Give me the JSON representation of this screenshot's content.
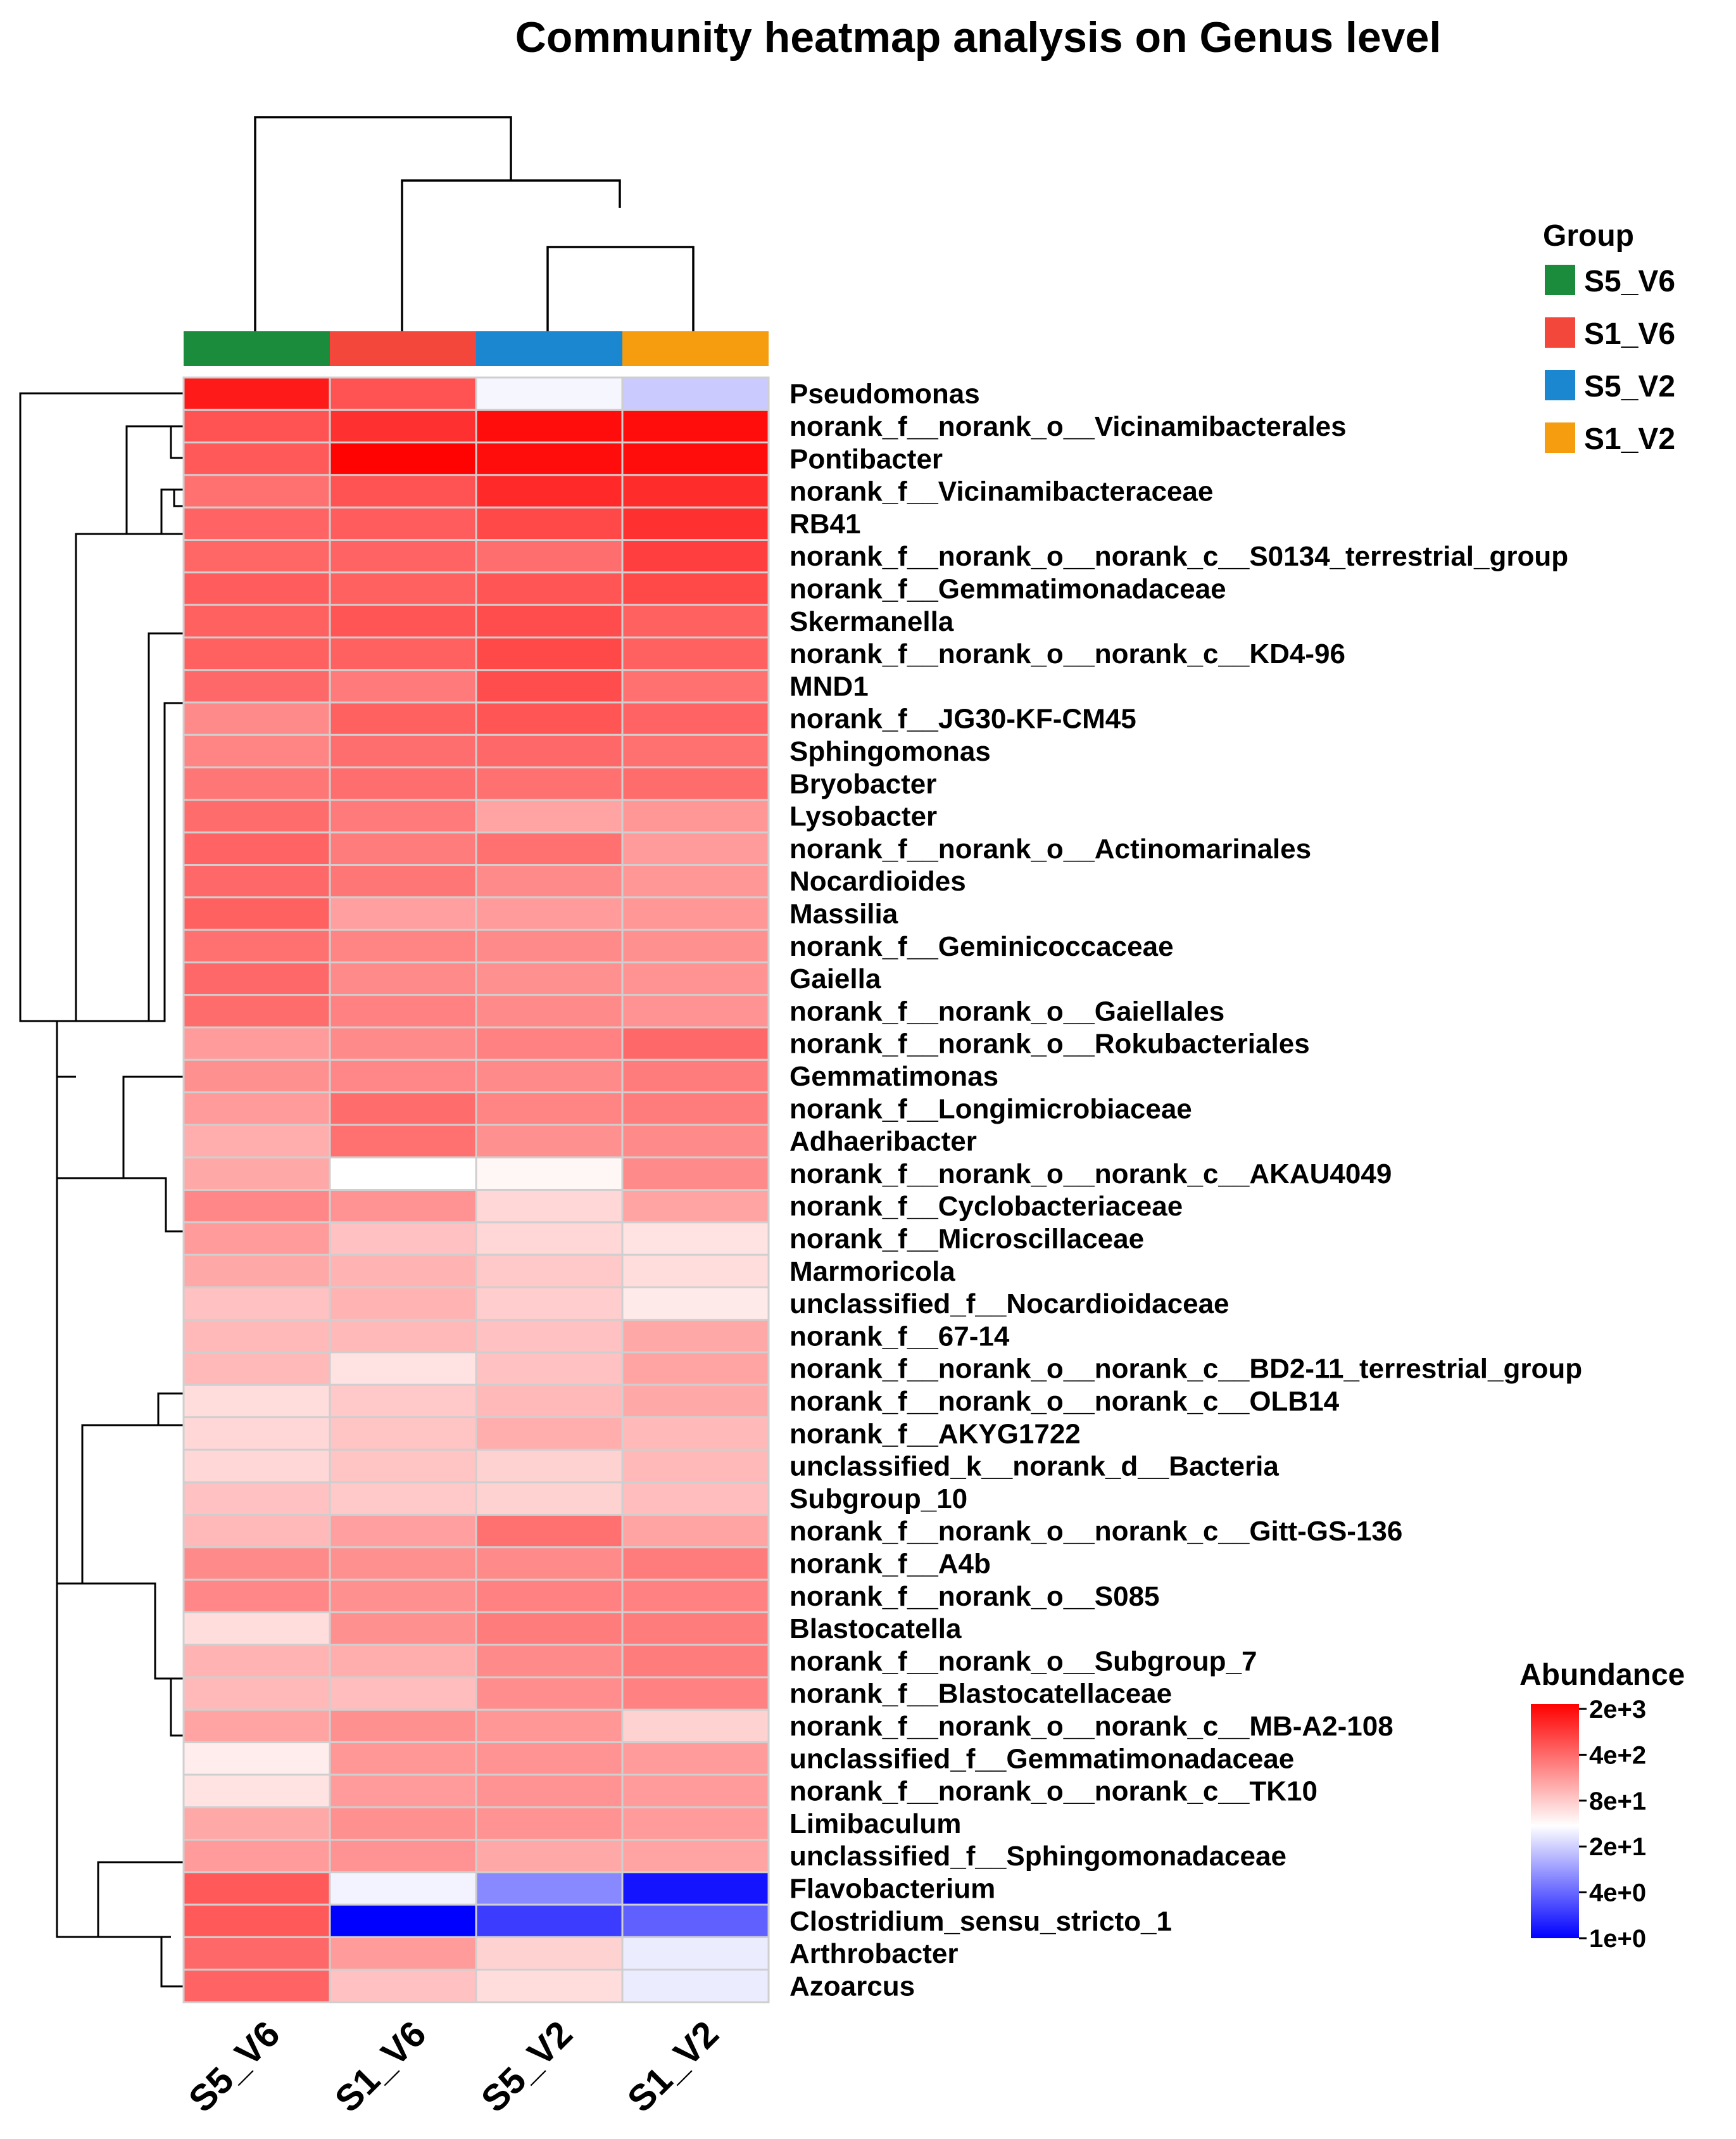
{
  "chart_data": {
    "type": "heatmap",
    "title": "Community heatmap analysis on Genus level",
    "columns": [
      "S5_V6",
      "S1_V6",
      "S5_V2",
      "S1_V2"
    ],
    "groups": [
      {
        "name": "S5_V6",
        "color": "#1a8c3b"
      },
      {
        "name": "S1_V6",
        "color": "#f4473c"
      },
      {
        "name": "S5_V2",
        "color": "#1b87d0"
      },
      {
        "name": "S1_V2",
        "color": "#f59d0e"
      }
    ],
    "group_legend_title": "Group",
    "scale": {
      "title": "Abundance",
      "ticks": [
        "2e+3",
        "4e+2",
        "8e+1",
        "2e+1",
        "4e+0",
        "1e+0"
      ],
      "log10_min": 0,
      "log10_max": 3.3,
      "colors": {
        "low": "#0000ff",
        "mid": "#ffffff",
        "high": "#ff0000"
      }
    },
    "rows": [
      {
        "name": "Pseudomonas",
        "values": [
          1300,
          500,
          25,
          14
        ]
      },
      {
        "name": "norank_f__norank_o__Vicinamibacterales",
        "values": [
          500,
          900,
          1600,
          1600
        ]
      },
      {
        "name": "Pontibacter",
        "values": [
          450,
          1900,
          1600,
          1600
        ]
      },
      {
        "name": "norank_f__Vicinamibacteraceae",
        "values": [
          300,
          500,
          1000,
          950
        ]
      },
      {
        "name": "RB41",
        "values": [
          380,
          420,
          600,
          900
        ]
      },
      {
        "name": "norank_f__norank_o__norank_c__S0134_terrestrial_group",
        "values": [
          360,
          380,
          320,
          700
        ]
      },
      {
        "name": "norank_f__Gemmatimonadaceae",
        "values": [
          420,
          400,
          480,
          600
        ]
      },
      {
        "name": "Skermanella",
        "values": [
          400,
          480,
          550,
          400
        ]
      },
      {
        "name": "norank_f__norank_o__norank_c__KD4-96",
        "values": [
          400,
          400,
          600,
          400
        ]
      },
      {
        "name": "MND1",
        "values": [
          350,
          260,
          550,
          300
        ]
      },
      {
        "name": "norank_f__JG30-KF-CM45",
        "values": [
          200,
          400,
          480,
          380
        ]
      },
      {
        "name": "Sphingomonas",
        "values": [
          220,
          320,
          350,
          300
        ]
      },
      {
        "name": "Bryobacter",
        "values": [
          280,
          320,
          300,
          330
        ]
      },
      {
        "name": "Lysobacter",
        "values": [
          330,
          260,
          130,
          160
        ]
      },
      {
        "name": "norank_f__norank_o__Actinomarinales",
        "values": [
          380,
          250,
          300,
          150
        ]
      },
      {
        "name": "Nocardioides",
        "values": [
          350,
          280,
          200,
          160
        ]
      },
      {
        "name": "Massilia",
        "values": [
          400,
          140,
          150,
          160
        ]
      },
      {
        "name": "norank_f__Geminicoccaceae",
        "values": [
          300,
          220,
          200,
          180
        ]
      },
      {
        "name": "Gaiella",
        "values": [
          350,
          200,
          180,
          170
        ]
      },
      {
        "name": "norank_f__norank_o__Gaiellales",
        "values": [
          330,
          230,
          200,
          170
        ]
      },
      {
        "name": "norank_f__norank_o__Rokubacteriales",
        "values": [
          150,
          200,
          230,
          350
        ]
      },
      {
        "name": "Gemmatimonas",
        "values": [
          180,
          210,
          200,
          250
        ]
      },
      {
        "name": "norank_f__Longimicrobiaceae",
        "values": [
          150,
          330,
          220,
          250
        ]
      },
      {
        "name": "Adhaeribacter",
        "values": [
          110,
          300,
          180,
          200
        ]
      },
      {
        "name": "norank_f__norank_o__norank_c__AKAU4049",
        "values": [
          120,
          28,
          33,
          200
        ]
      },
      {
        "name": "norank_f__Cyclobacteriaceae",
        "values": [
          210,
          170,
          55,
          130
        ]
      },
      {
        "name": "norank_f__Microscillaceae",
        "values": [
          150,
          80,
          55,
          45
        ]
      },
      {
        "name": "Marmoricola",
        "values": [
          120,
          100,
          70,
          50
        ]
      },
      {
        "name": "unclassified_f__Nocardioidaceae",
        "values": [
          80,
          100,
          65,
          40
        ]
      },
      {
        "name": "norank_f__67-14",
        "values": [
          90,
          90,
          80,
          120
        ]
      },
      {
        "name": "norank_f__norank_o__norank_c__BD2-11_terrestrial_group",
        "values": [
          90,
          45,
          80,
          130
        ]
      },
      {
        "name": "norank_f__norank_o__norank_c__OLB14",
        "values": [
          50,
          70,
          90,
          120
        ]
      },
      {
        "name": "norank_f__AKYG1722",
        "values": [
          55,
          75,
          110,
          90
        ]
      },
      {
        "name": "unclassified_k__norank_d__Bacteria",
        "values": [
          55,
          75,
          60,
          90
        ]
      },
      {
        "name": "Subgroup_10",
        "values": [
          80,
          70,
          60,
          85
        ]
      },
      {
        "name": "norank_f__norank_o__norank_c__Gitt-GS-136",
        "values": [
          90,
          140,
          300,
          130
        ]
      },
      {
        "name": "norank_f__A4b",
        "values": [
          200,
          180,
          200,
          250
        ]
      },
      {
        "name": "norank_f__norank_o__S085",
        "values": [
          210,
          180,
          230,
          230
        ]
      },
      {
        "name": "Blastocatella",
        "values": [
          50,
          180,
          250,
          250
        ]
      },
      {
        "name": "norank_f__norank_o__Subgroup_7",
        "values": [
          100,
          110,
          200,
          250
        ]
      },
      {
        "name": "norank_f__Blastocatellaceae",
        "values": [
          90,
          85,
          190,
          230
        ]
      },
      {
        "name": "norank_f__norank_o__norank_c__MB-A2-108",
        "values": [
          130,
          180,
          160,
          60
        ]
      },
      {
        "name": "unclassified_f__Gemmatimonadaceae",
        "values": [
          38,
          160,
          170,
          150
        ]
      },
      {
        "name": "norank_f__norank_o__norank_c__TK10",
        "values": [
          45,
          150,
          170,
          150
        ]
      },
      {
        "name": "Limibaculum",
        "values": [
          120,
          180,
          170,
          150
        ]
      },
      {
        "name": "unclassified_f__Sphingomonadaceae",
        "values": [
          150,
          170,
          120,
          130
        ]
      },
      {
        "name": "Flavobacterium",
        "values": [
          450,
          24,
          6,
          1.3
        ]
      },
      {
        "name": "Clostridium_sensu_stricto_1",
        "values": [
          450,
          1,
          2.2,
          3.5
        ]
      },
      {
        "name": "Arthrobacter",
        "values": [
          350,
          150,
          60,
          22
        ]
      },
      {
        "name": "Azoarcus",
        "values": [
          380,
          80,
          50,
          22
        ]
      }
    ]
  }
}
